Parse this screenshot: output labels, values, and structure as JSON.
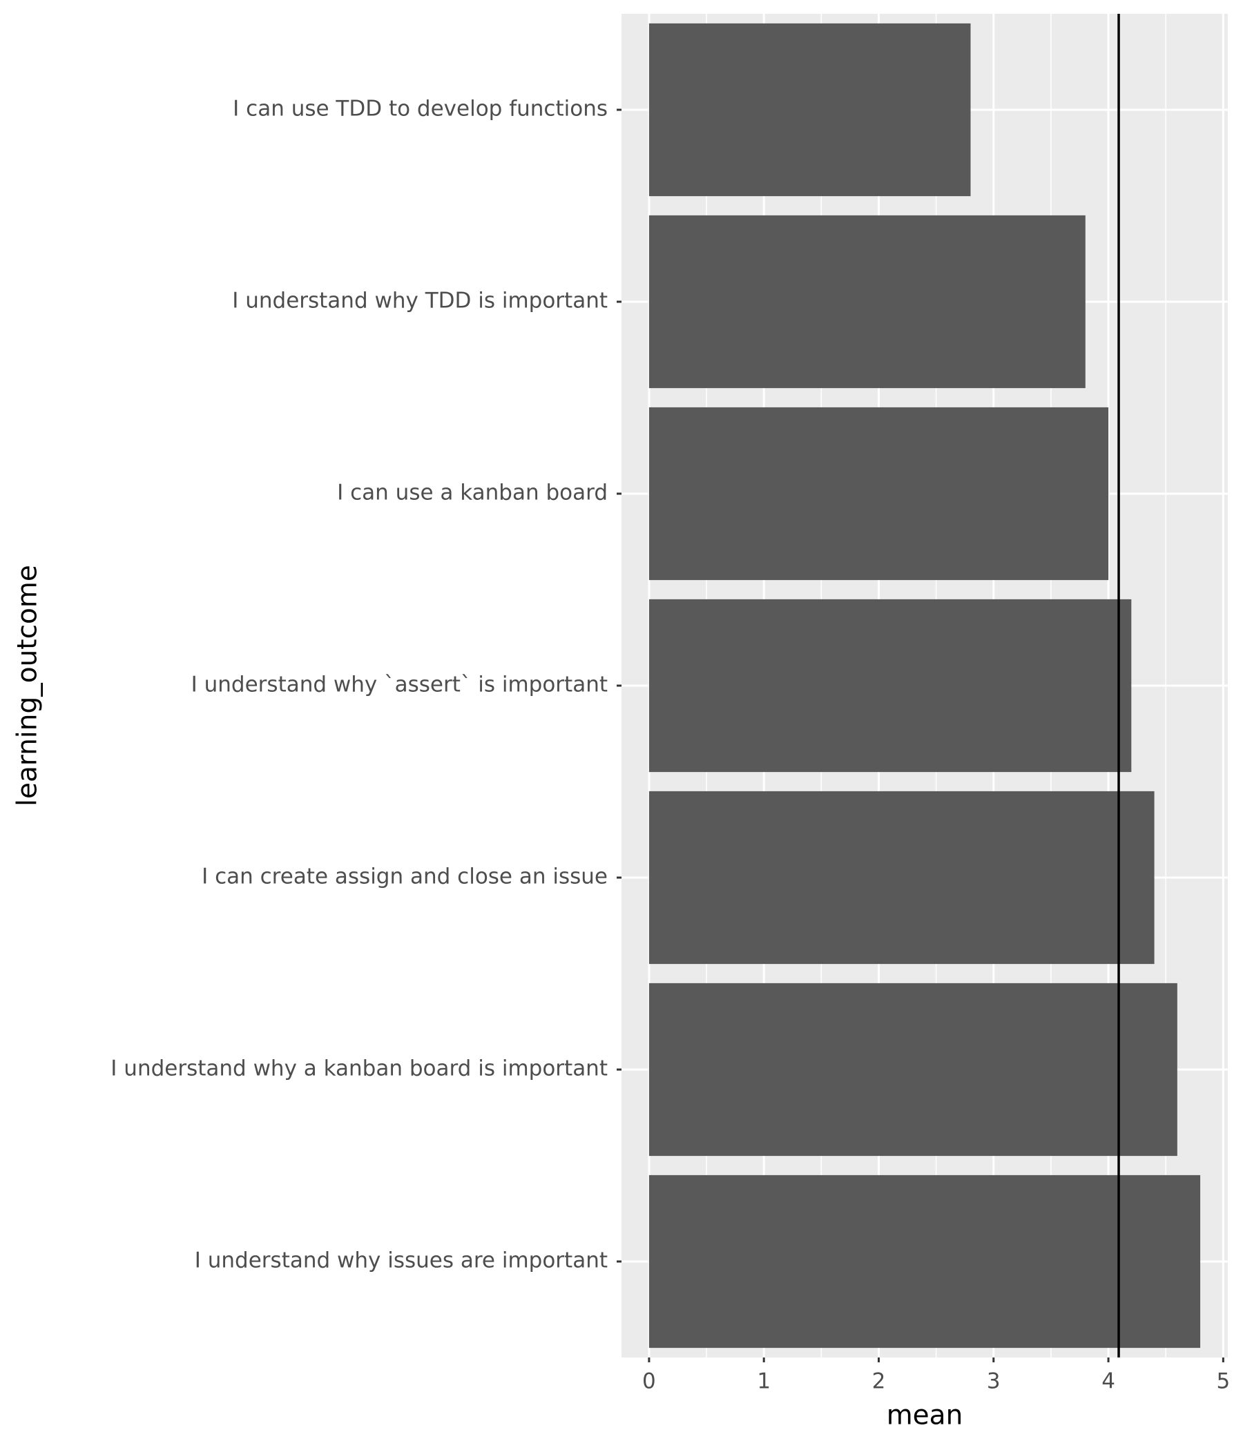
{
  "chart_data": {
    "type": "bar",
    "orientation": "horizontal",
    "categories": [
      "I can use TDD to develop functions",
      "I understand why TDD is important",
      "I can use a kanban board",
      "I understand why `assert` is important",
      "I can create assign and close an issue",
      "I understand why a kanban board is important",
      "I understand why issues are important"
    ],
    "values": [
      2.8,
      3.8,
      4.0,
      4.2,
      4.4,
      4.6,
      4.8
    ],
    "color": "#595959",
    "xlabel": "mean",
    "ylabel": "learning_outcome",
    "xlim": [
      -0.24,
      5.04
    ],
    "xticks": [
      0,
      1,
      2,
      3,
      4,
      5
    ],
    "xminor": [
      0.5,
      1.5,
      2.5,
      3.5,
      4.5
    ],
    "reference_line": 4.09,
    "grid": true
  }
}
